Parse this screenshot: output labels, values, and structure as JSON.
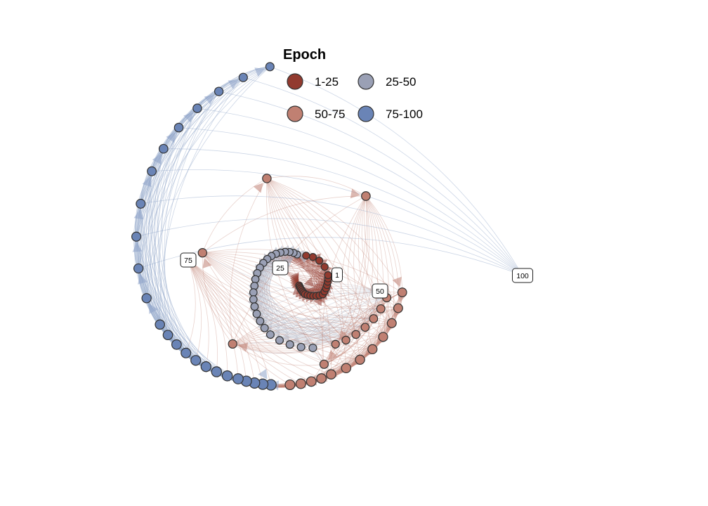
{
  "chart_data": {
    "type": "network",
    "legend": {
      "title": "Epoch",
      "entries": [
        {
          "label": "1-25",
          "color": "#923a2f"
        },
        {
          "label": "25-50",
          "color": "#9aa0b5"
        },
        {
          "label": "50-75",
          "color": "#c08072"
        },
        {
          "label": "75-100",
          "color": "#6a84b6"
        }
      ]
    },
    "node_count": 100,
    "node_labels": [
      "1",
      "25",
      "50",
      "75",
      "100"
    ],
    "edge_lookahead": 10,
    "edge_colors": {
      "1-25": "#923a2f",
      "25-50": "#a9aec0",
      "50-75": "#c08072",
      "75-100": "#8ea3c8"
    }
  }
}
